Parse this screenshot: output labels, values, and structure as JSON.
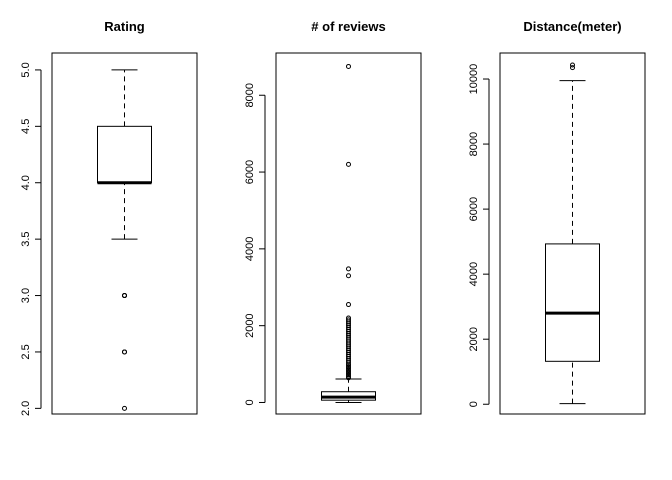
{
  "chart_data": [
    {
      "type": "boxplot",
      "title": "Rating",
      "xlabel": "",
      "ylabel": "",
      "ylim": [
        1.95,
        5.15
      ],
      "yticks": [
        2.0,
        2.5,
        3.0,
        3.5,
        4.0,
        4.5,
        5.0
      ],
      "ytick_labels": [
        "2.0",
        "2.5",
        "3.0",
        "3.5",
        "4.0",
        "4.5",
        "5.0"
      ],
      "box": {
        "whisker_low": 3.5,
        "q1": 4.0,
        "median": 4.0,
        "q3": 4.5,
        "whisker_high": 5.0
      },
      "outliers": [
        3.0,
        3.0,
        3.0,
        2.5,
        2.5,
        2.0
      ]
    },
    {
      "type": "boxplot",
      "title": "# of reviews",
      "xlabel": "",
      "ylabel": "",
      "ylim": [
        -300,
        9100
      ],
      "yticks": [
        0,
        2000,
        4000,
        6000,
        8000
      ],
      "ytick_labels": [
        "0",
        "2000",
        "4000",
        "6000",
        "8000"
      ],
      "box": {
        "whisker_low": 0,
        "q1": 60,
        "median": 140,
        "q3": 280,
        "whisker_high": 610
      },
      "outliers": [
        640,
        680,
        720,
        760,
        800,
        840,
        880,
        920,
        960,
        1000,
        1050,
        1100,
        1150,
        1200,
        1250,
        1300,
        1350,
        1400,
        1450,
        1500,
        1550,
        1600,
        1650,
        1700,
        1750,
        1800,
        1850,
        1900,
        1950,
        2000,
        2050,
        2100,
        2150,
        2200,
        2550,
        3300,
        3480,
        6200,
        8750
      ]
    },
    {
      "type": "boxplot",
      "title": "Distance(meter)",
      "xlabel": "",
      "ylabel": "",
      "ylim": [
        -300,
        10800
      ],
      "yticks": [
        0,
        2000,
        4000,
        6000,
        8000,
        10000
      ],
      "ytick_labels": [
        "0",
        "2000",
        "4000",
        "6000",
        "8000",
        "10000"
      ],
      "box": {
        "whisker_low": 20,
        "q1": 1320,
        "median": 2800,
        "q3": 4930,
        "whisker_high": 9950
      },
      "outliers": [
        10350,
        10430
      ]
    }
  ]
}
